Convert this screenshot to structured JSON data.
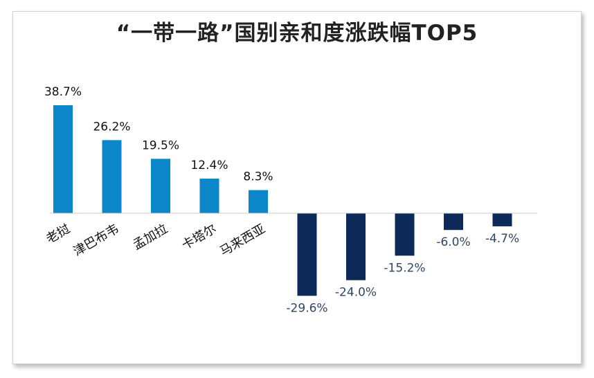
{
  "chart_data": {
    "type": "bar",
    "title": "“一带一路”国别亲和度涨跌幅TOP5",
    "categories": [
      "老挝",
      "津巴布韦",
      "孟加拉",
      "卡塔尔",
      "马来西亚",
      "",
      "",
      "",
      "",
      ""
    ],
    "values": [
      38.7,
      26.2,
      19.5,
      12.4,
      8.3,
      -29.6,
      -24.0,
      -15.2,
      -6.0,
      -4.7
    ],
    "value_labels": [
      "38.7%",
      "26.2%",
      "19.5%",
      "12.4%",
      "8.3%",
      "-29.6%",
      "-24.0%",
      "-15.2%",
      "-6.0%",
      "-4.7%"
    ],
    "colors": {
      "positive": "#0a86c9",
      "negative": "#0c2957",
      "negative_label": "#2f4663",
      "positive_label": "#111111",
      "axis": "#c8c8c8"
    },
    "ylim": [
      -30,
      39
    ],
    "grid": false,
    "legend": "none"
  }
}
